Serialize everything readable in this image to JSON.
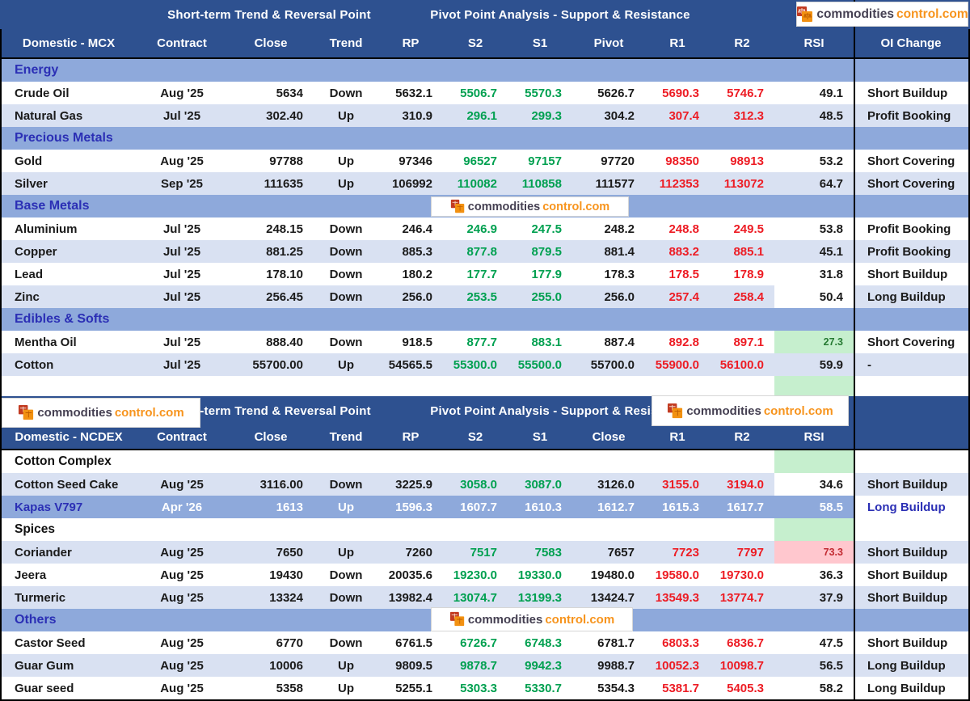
{
  "logo": {
    "primary": "commodities",
    "secondary": "control.com"
  },
  "colors": {
    "header_bg": "#2E5190",
    "section_bg": "#8EA9DB",
    "row_alt_bg": "#D9E1F2",
    "section_text": "#2B2FB5",
    "positive_text": "#00A050",
    "negative_text": "#ED1C24",
    "oversold_bg": "#C6EFCE",
    "oversold_text": "#267A33",
    "overbought_bg": "#FFC7CE",
    "overbought_text": "#C22A31",
    "logo_dark": "#454052",
    "logo_orange": "#F7941D"
  },
  "tables": [
    {
      "dom": "t-mcx",
      "band_titles": {
        "left": "Short-term Trend & Reversal Point",
        "right": "Pivot Point Analysis - Support & Resistance"
      },
      "columns": [
        "Domestic - MCX",
        "Contract",
        "Close",
        "Trend",
        "RP",
        "S2",
        "S1",
        "Pivot",
        "R1",
        "R2",
        "RSI",
        "OI Change"
      ],
      "rows": [
        {
          "type": "section",
          "style": "blue",
          "label": "Energy"
        },
        {
          "type": "data",
          "shade": "white",
          "name": "Crude Oil",
          "contract": "Aug '25",
          "close": "5634",
          "trend": "Down",
          "rp": "5632.1",
          "s2": "5506.7",
          "s1": "5570.3",
          "pivot": "5626.7",
          "r1": "5690.3",
          "r2": "5746.7",
          "rsi": "49.1",
          "oi": "Short Buildup"
        },
        {
          "type": "data",
          "shade": "lav",
          "name": "Natural Gas",
          "contract": "Jul '25",
          "close": "302.40",
          "trend": "Up",
          "rp": "310.9",
          "s2": "296.1",
          "s1": "299.3",
          "pivot": "304.2",
          "r1": "307.4",
          "r2": "312.3",
          "rsi": "48.5",
          "oi": "Profit Booking"
        },
        {
          "type": "section",
          "style": "blue",
          "label": "Precious Metals"
        },
        {
          "type": "data",
          "shade": "white",
          "name": "Gold",
          "contract": "Aug '25",
          "close": "97788",
          "trend": "Up",
          "rp": "97346",
          "s2": "96527",
          "s1": "97157",
          "pivot": "97720",
          "r1": "98350",
          "r2": "98913",
          "rsi": "53.2",
          "oi": "Short Covering"
        },
        {
          "type": "data",
          "shade": "lav",
          "name": "Silver",
          "contract": "Sep '25",
          "close": "111635",
          "trend": "Up",
          "rp": "106992",
          "s2": "110082",
          "s1": "110858",
          "pivot": "111577",
          "r1": "112353",
          "r2": "113072",
          "rsi": "64.7",
          "oi": "Short Covering"
        },
        {
          "type": "section",
          "style": "blue",
          "label": "Base Metals"
        },
        {
          "type": "data",
          "shade": "white",
          "name": "Aluminium",
          "contract": "Jul '25",
          "close": "248.15",
          "trend": "Down",
          "rp": "246.4",
          "s2": "246.9",
          "s1": "247.5",
          "pivot": "248.2",
          "r1": "248.8",
          "r2": "249.5",
          "rsi": "53.8",
          "oi": "Profit Booking"
        },
        {
          "type": "data",
          "shade": "lav",
          "name": "Copper",
          "contract": "Jul '25",
          "close": "881.25",
          "trend": "Down",
          "rp": "885.3",
          "s2": "877.8",
          "s1": "879.5",
          "pivot": "881.4",
          "r1": "883.2",
          "r2": "885.1",
          "rsi": "45.1",
          "oi": "Profit Booking"
        },
        {
          "type": "data",
          "shade": "white",
          "name": "Lead",
          "contract": "Jul '25",
          "close": "178.10",
          "trend": "Down",
          "rp": "180.2",
          "s2": "177.7",
          "s1": "177.9",
          "pivot": "178.3",
          "r1": "178.5",
          "r2": "178.9",
          "rsi": "31.8",
          "oi": "Short Buildup"
        },
        {
          "type": "data",
          "shade": "lav",
          "name": "Zinc",
          "contract": "Jul '25",
          "close": "256.45",
          "trend": "Down",
          "rp": "256.0",
          "s2": "253.5",
          "s1": "255.0",
          "pivot": "256.0",
          "r1": "257.4",
          "r2": "258.4",
          "rsi": "50.4",
          "oi": "Long Buildup",
          "rsi_bg": "white"
        },
        {
          "type": "section",
          "style": "blue",
          "label": "Edibles & Softs"
        },
        {
          "type": "data",
          "shade": "white",
          "name": "Mentha Oil",
          "contract": "Jul '25",
          "close": "888.40",
          "trend": "Down",
          "rp": "918.5",
          "s2": "877.7",
          "s1": "883.1",
          "pivot": "887.4",
          "r1": "892.8",
          "r2": "897.1",
          "rsi": "27.3",
          "oi": "Short Covering",
          "rsi_bg": "green",
          "rsi_small": true
        },
        {
          "type": "data",
          "shade": "lav",
          "name": "Cotton",
          "contract": "Jul '25",
          "close": "55700.00",
          "trend": "Up",
          "rp": "54565.5",
          "s2": "55300.0",
          "s1": "55500.0",
          "pivot": "55700.0",
          "r1": "55900.0",
          "r2": "56100.0",
          "rsi": "59.9",
          "oi": "-"
        }
      ]
    },
    {
      "dom": "t-ncdex",
      "band_titles": {
        "left": "Short-term Trend & Reversal Point",
        "right": "Pivot Point Analysis - Support & Resistance"
      },
      "columns": [
        "Domestic - NCDEX",
        "Contract",
        "Close",
        "Trend",
        "RP",
        "S2",
        "S1",
        "Close",
        "R1",
        "R2",
        "RSI",
        ""
      ],
      "rows": [
        {
          "type": "section",
          "style": "white",
          "label": "Cotton Complex",
          "rsi_bg": "green"
        },
        {
          "type": "data",
          "shade": "lav",
          "name": "Cotton Seed Cake",
          "contract": "Aug '25",
          "close": "3116.00",
          "trend": "Down",
          "rp": "3225.9",
          "s2": "3058.0",
          "s1": "3087.0",
          "pivot": "3126.0",
          "r1": "3155.0",
          "r2": "3194.0",
          "rsi": "34.6",
          "oi": "Short Buildup",
          "rsi_bg": "white"
        },
        {
          "type": "data",
          "shade": "highlight",
          "name": "Kapas V797",
          "contract": "Apr '26",
          "close": "1613",
          "trend": "Up",
          "rp": "1596.3",
          "s2": "1607.7",
          "s1": "1610.3",
          "pivot": "1612.7",
          "r1": "1615.3",
          "r2": "1617.7",
          "rsi": "58.5",
          "oi": "Long Buildup"
        },
        {
          "type": "section",
          "style": "white",
          "label": "Spices",
          "rsi_bg": "green"
        },
        {
          "type": "data",
          "shade": "lav",
          "name": "Coriander",
          "contract": "Aug '25",
          "close": "7650",
          "trend": "Up",
          "rp": "7260",
          "s2": "7517",
          "s1": "7583",
          "pivot": "7657",
          "r1": "7723",
          "r2": "7797",
          "rsi": "73.3",
          "oi": "Short Buildup",
          "rsi_bg": "pink",
          "rsi_small": true
        },
        {
          "type": "data",
          "shade": "white",
          "name": "Jeera",
          "contract": "Aug '25",
          "close": "19430",
          "trend": "Down",
          "rp": "20035.6",
          "s2": "19230.0",
          "s1": "19330.0",
          "pivot": "19480.0",
          "r1": "19580.0",
          "r2": "19730.0",
          "rsi": "36.3",
          "oi": "Short Buildup"
        },
        {
          "type": "data",
          "shade": "lav",
          "name": "Turmeric",
          "contract": "Aug '25",
          "close": "13324",
          "trend": "Down",
          "rp": "13982.4",
          "s2": "13074.7",
          "s1": "13199.3",
          "pivot": "13424.7",
          "r1": "13549.3",
          "r2": "13774.7",
          "rsi": "37.9",
          "oi": "Short Buildup"
        },
        {
          "type": "section",
          "style": "blue",
          "label": "Others"
        },
        {
          "type": "data",
          "shade": "white",
          "name": "Castor Seed",
          "contract": "Aug '25",
          "close": "6770",
          "trend": "Down",
          "rp": "6761.5",
          "s2": "6726.7",
          "s1": "6748.3",
          "pivot": "6781.7",
          "r1": "6803.3",
          "r2": "6836.7",
          "rsi": "47.5",
          "oi": "Short Buildup"
        },
        {
          "type": "data",
          "shade": "lav",
          "name": "Guar Gum",
          "contract": "Aug '25",
          "close": "10006",
          "trend": "Up",
          "rp": "9809.5",
          "s2": "9878.7",
          "s1": "9942.3",
          "pivot": "9988.7",
          "r1": "10052.3",
          "r2": "10098.7",
          "rsi": "56.5",
          "oi": "Long Buildup"
        },
        {
          "type": "data",
          "shade": "white",
          "name": "Guar seed",
          "contract": "Aug '25",
          "close": "5358",
          "trend": "Up",
          "rp": "5255.1",
          "s2": "5303.3",
          "s1": "5330.7",
          "pivot": "5354.3",
          "r1": "5381.7",
          "r2": "5405.3",
          "rsi": "58.2",
          "oi": "Long Buildup"
        }
      ]
    }
  ]
}
